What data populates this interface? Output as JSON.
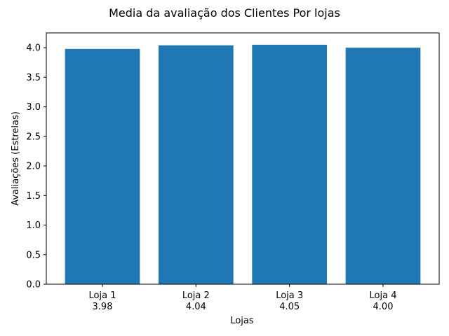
{
  "chart_data": {
    "type": "bar",
    "title": "Media da avaliação dos Clientes Por lojas",
    "xlabel": "Lojas",
    "ylabel": "Avaliações (Estrelas)",
    "categories": [
      "Loja 1",
      "Loja 2",
      "Loja 3",
      "Loja 4"
    ],
    "value_labels": [
      "3.98",
      "4.04",
      "4.05",
      "4.00"
    ],
    "values": [
      3.98,
      4.04,
      4.05,
      4.0
    ],
    "ylim": [
      0,
      4.25
    ],
    "yticks": [
      0.0,
      0.5,
      1.0,
      1.5,
      2.0,
      2.5,
      3.0,
      3.5,
      4.0
    ],
    "ytick_labels": [
      "0.0",
      "0.5",
      "1.0",
      "1.5",
      "2.0",
      "2.5",
      "3.0",
      "3.5",
      "4.0"
    ],
    "bar_color": "#1f77b4",
    "grid": false,
    "legend": false
  }
}
